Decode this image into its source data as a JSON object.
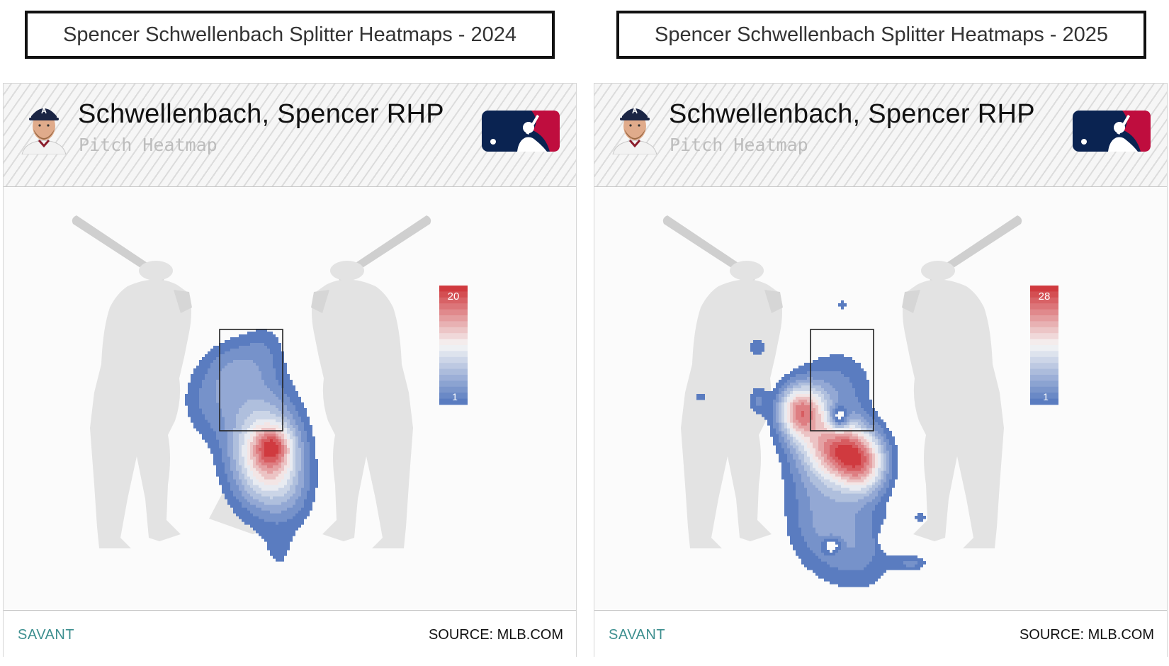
{
  "titles": {
    "left": "Spencer Schwellenbach Splitter Heatmaps - 2024",
    "right": "Spencer Schwellenbach Splitter Heatmaps - 2025"
  },
  "card": {
    "player_name": "Schwellenbach, Spencer RHP",
    "subtitle": "Pitch Heatmap",
    "footer_left": "SAVANT",
    "footer_right": "SOURCE: MLB.COM"
  },
  "colors": {
    "high": "#d03a3f",
    "low": "#5a7cc0",
    "silhouette": "#e3e3e3",
    "strike_zone": "#222222",
    "mlb_blue": "#0a2351",
    "mlb_red": "#bf0d3e"
  },
  "icons": [
    "player-headshot-icon",
    "mlb-logo-icon",
    "batter-silhouette-icon"
  ],
  "chart_data": [
    {
      "type": "heatmap",
      "season": "2024",
      "colorbar": {
        "max": 20,
        "min": 1,
        "max_label": "20",
        "min_label": "1"
      },
      "blobs": [
        {
          "x": 0.25,
          "y": 1.2,
          "w": 0.32,
          "h": 0.42,
          "v": 11
        },
        {
          "x": 0.05,
          "y": 2.0,
          "w": 0.45,
          "h": 0.55,
          "v": 4
        },
        {
          "x": 0.15,
          "y": 1.0,
          "w": 0.45,
          "h": 0.65,
          "v": 4
        },
        {
          "x": -0.65,
          "y": 2.0,
          "w": 0.32,
          "h": 0.4,
          "v": 3
        },
        {
          "x": 0.2,
          "y": 2.8,
          "w": 0.22,
          "h": 0.28,
          "v": 2
        },
        {
          "x": -0.25,
          "y": 2.5,
          "w": 0.3,
          "h": 0.3,
          "v": 3
        },
        {
          "x": 0.6,
          "y": 0.6,
          "w": 0.28,
          "h": 0.35,
          "v": 2
        },
        {
          "x": 0.4,
          "y": -0.25,
          "w": 0.25,
          "h": 0.3,
          "v": 2
        },
        {
          "x": 0.3,
          "y": 1.35,
          "w": 0.16,
          "h": 0.16,
          "v": 6
        }
      ]
    },
    {
      "type": "heatmap",
      "season": "2025",
      "colorbar": {
        "max": 28,
        "min": 1,
        "max_label": "28",
        "min_label": "1"
      },
      "blobs": [
        {
          "x": -0.6,
          "y": 1.85,
          "w": 0.22,
          "h": 0.26,
          "v": 14
        },
        {
          "x": 0.05,
          "y": 1.3,
          "w": 0.35,
          "h": 0.28,
          "v": 14
        },
        {
          "x": 0.3,
          "y": 1.0,
          "w": 0.25,
          "h": 0.28,
          "v": 9
        },
        {
          "x": -0.3,
          "y": 1.5,
          "w": 0.4,
          "h": 0.55,
          "v": 6
        },
        {
          "x": -0.3,
          "y": 0.3,
          "w": 0.4,
          "h": 0.55,
          "v": 5
        },
        {
          "x": 0.3,
          "y": -0.1,
          "w": 0.4,
          "h": 0.5,
          "v": 4
        },
        {
          "x": 0.0,
          "y": 2.3,
          "w": 0.42,
          "h": 0.4,
          "v": 3
        },
        {
          "x": -1.2,
          "y": 2.0,
          "w": 0.1,
          "h": 0.16,
          "v": 4
        },
        {
          "x": -1.2,
          "y": 2.75,
          "w": 0.1,
          "h": 0.12,
          "v": 4
        },
        {
          "x": -2.0,
          "y": 2.05,
          "w": 0.06,
          "h": 0.06,
          "v": 4
        },
        {
          "x": 1.1,
          "y": 0.35,
          "w": 0.06,
          "h": 0.06,
          "v": 4
        },
        {
          "x": 1.0,
          "y": -0.3,
          "w": 0.16,
          "h": 0.08,
          "v": 4
        },
        {
          "x": 0.85,
          "y": -1.1,
          "w": 0.06,
          "h": 0.06,
          "v": 4
        },
        {
          "x": 0.0,
          "y": 3.35,
          "w": 0.05,
          "h": 0.05,
          "v": 4
        },
        {
          "x": -0.05,
          "y": 1.75,
          "w": 0.09,
          "h": 0.12,
          "v": -8
        },
        {
          "x": 0.65,
          "y": 0.05,
          "w": 0.08,
          "h": 0.1,
          "v": -6
        },
        {
          "x": -0.15,
          "y": -0.05,
          "w": 0.09,
          "h": 0.08,
          "v": -5
        }
      ]
    }
  ]
}
